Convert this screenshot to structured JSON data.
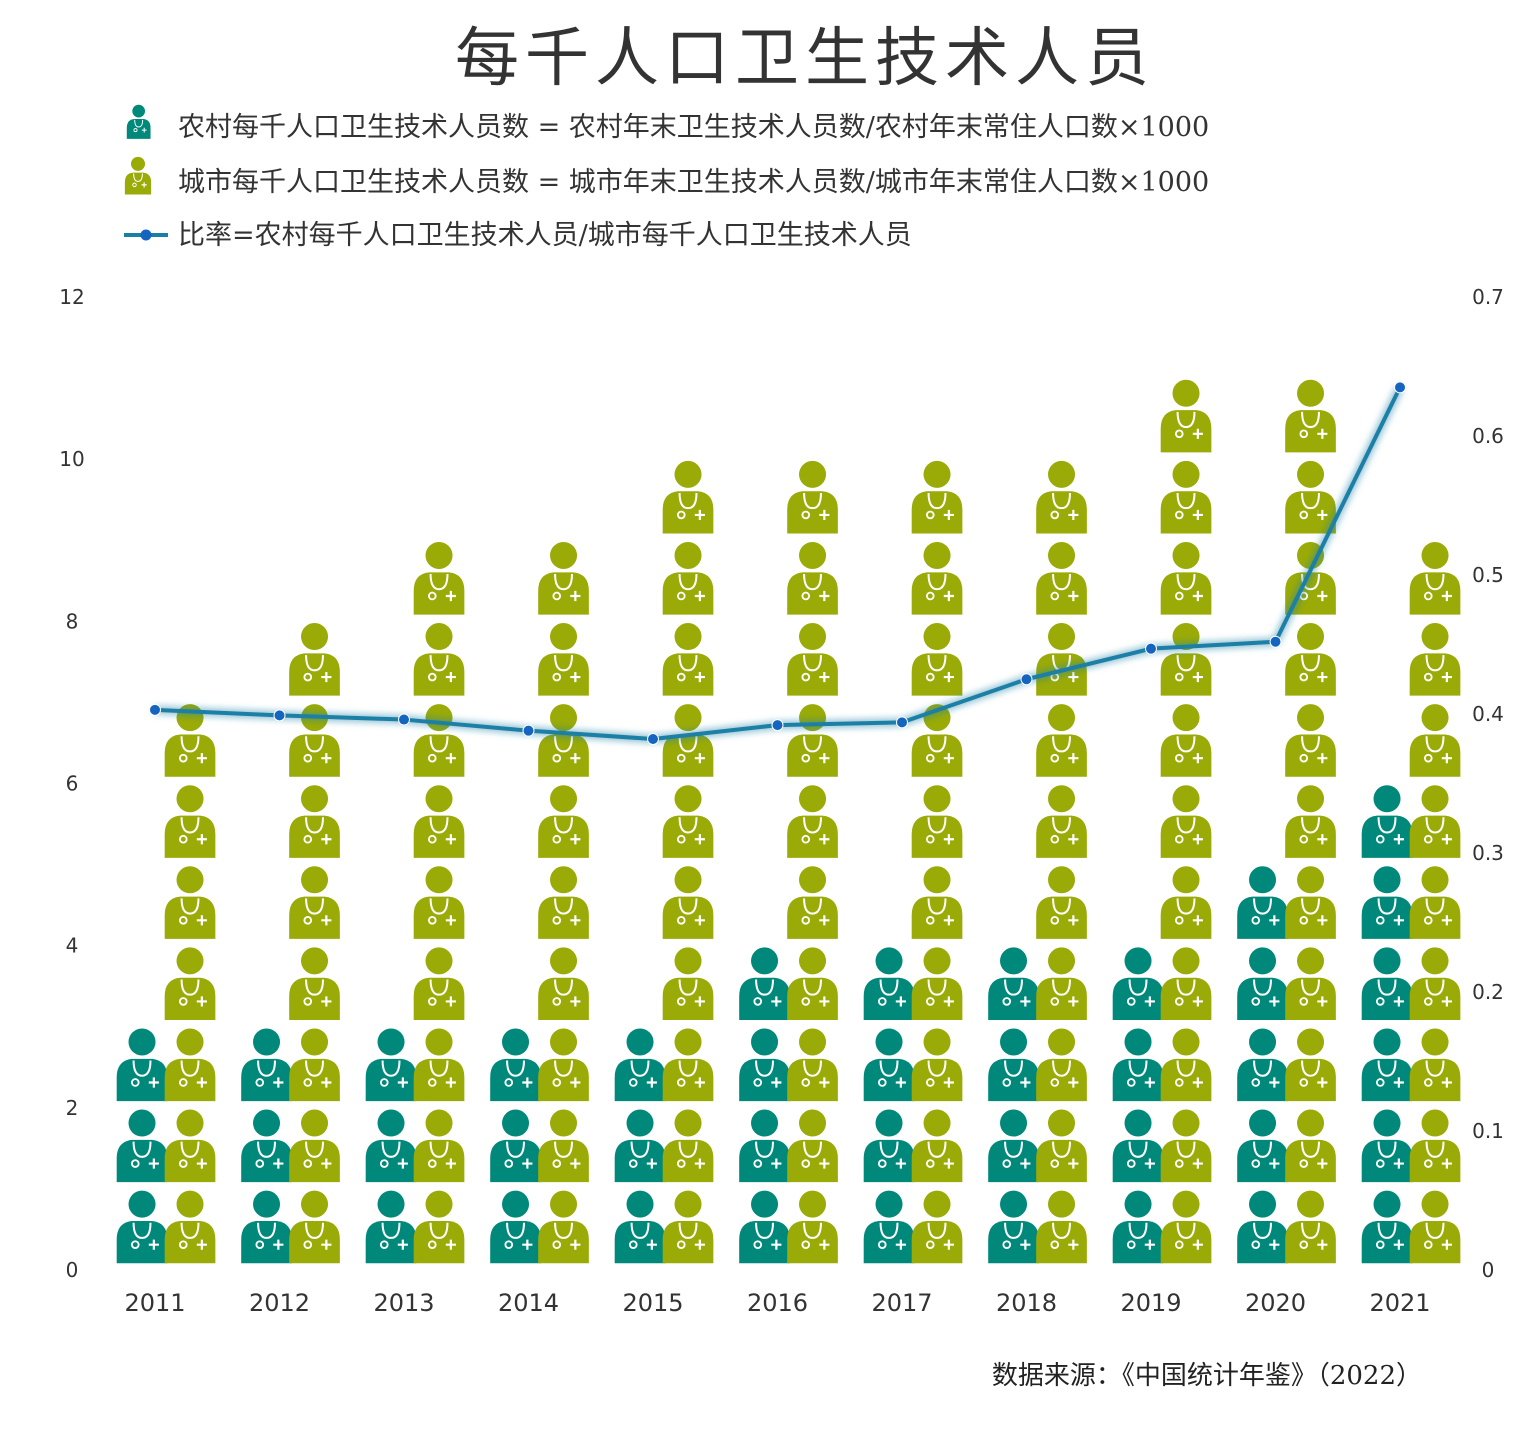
{
  "chart_data": {
    "type": "bar",
    "title": "每千人口卫生技术人员",
    "categories": [
      "2011",
      "2012",
      "2013",
      "2014",
      "2015",
      "2016",
      "2017",
      "2018",
      "2019",
      "2020",
      "2021"
    ],
    "series": [
      {
        "name": "农村每千人口卫生技术人员数 = 农村年末卫生技术人员数/农村年末常住人口数×1000",
        "values": [
          3.19,
          3.41,
          3.64,
          3.77,
          3.9,
          4.08,
          4.28,
          4.63,
          4.96,
          5.18,
          6.27
        ],
        "color": "#00897B",
        "axis": "left",
        "style": "pictograph"
      },
      {
        "name": "城市每千人口卫生技术人员数 = 城市年末卫生技术人员数/城市年末常住人口数×1000",
        "values": [
          7.9,
          8.54,
          9.18,
          9.7,
          10.21,
          10.42,
          10.87,
          10.91,
          11.1,
          11.46,
          9.87
        ],
        "color": "#9AAA07",
        "axis": "left",
        "style": "pictograph"
      },
      {
        "name": "比率=农村每千人口卫生技术人员/城市每千人口卫生技术人员",
        "values": [
          0.403,
          0.399,
          0.396,
          0.388,
          0.382,
          0.392,
          0.394,
          0.425,
          0.447,
          0.452,
          0.635
        ],
        "color": "#1A7FA6",
        "axis": "right",
        "style": "line"
      }
    ],
    "y_left": {
      "min": 0,
      "max": 12,
      "ticks": [
        "0",
        "2",
        "4",
        "6",
        "8",
        "10",
        "12"
      ]
    },
    "y_right": {
      "min": 0,
      "max": 0.7,
      "ticks": [
        "0",
        "0.1",
        "0.2",
        "0.3",
        "0.4",
        "0.5",
        "0.6",
        "0.7"
      ]
    },
    "grid": false,
    "legend_position": "top-left",
    "source": "数据来源：《中国统计年鉴》（2022）"
  }
}
